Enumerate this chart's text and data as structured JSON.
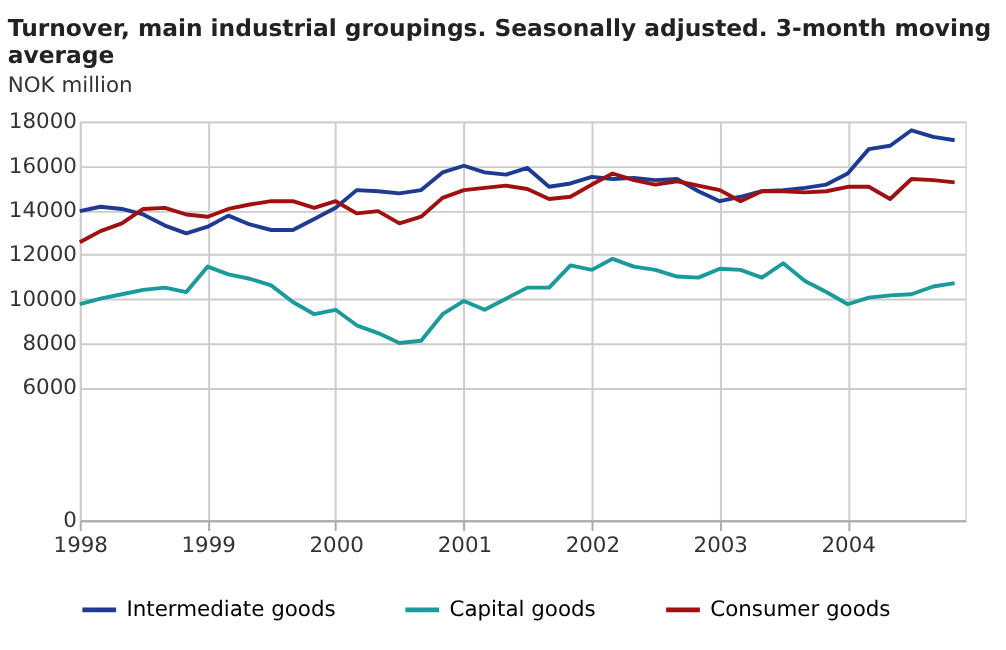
{
  "chart_data": {
    "type": "line",
    "title": [
      "Turnover, main industrial groupings. Seasonally adjusted. 3-month moving",
      "average"
    ],
    "ylabel": "NOK million",
    "x": [
      "1998-01",
      "1998-03",
      "1998-05",
      "1998-07",
      "1998-09",
      "1998-11",
      "1999-01",
      "1999-03",
      "1999-05",
      "1999-07",
      "1999-09",
      "1999-11",
      "2000-01",
      "2000-03",
      "2000-05",
      "2000-07",
      "2000-09",
      "2000-11",
      "2001-01",
      "2001-03",
      "2001-05",
      "2001-07",
      "2001-09",
      "2001-11",
      "2002-01",
      "2002-03",
      "2002-05",
      "2002-07",
      "2002-09",
      "2002-11",
      "2003-01",
      "2003-03",
      "2003-05",
      "2003-07",
      "2003-09",
      "2003-11",
      "2004-01",
      "2004-03",
      "2004-05",
      "2004-07",
      "2004-09",
      "2004-11"
    ],
    "series": [
      {
        "name": "Intermediate goods",
        "color": "#1f3a93",
        "values": [
          13950,
          14150,
          14050,
          13800,
          13300,
          12950,
          13250,
          13750,
          13350,
          13100,
          13100,
          13600,
          14100,
          14900,
          14850,
          14750,
          14900,
          15700,
          16000,
          15700,
          15600,
          15900,
          15050,
          15200,
          15500,
          15400,
          15450,
          15350,
          15400,
          14850,
          14400,
          14600,
          14850,
          14900,
          15000,
          15150,
          15650,
          16750,
          16900,
          17600,
          17300,
          17150
        ]
      },
      {
        "name": "Capital goods",
        "color": "#1a9a9a",
        "values": [
          9750,
          10000,
          10200,
          10400,
          10500,
          10300,
          11450,
          11100,
          10900,
          10600,
          9850,
          9300,
          9500,
          8800,
          8450,
          8000,
          8100,
          9300,
          9900,
          9500,
          10000,
          10500,
          10500,
          11500,
          11300,
          11800,
          11450,
          11300,
          11000,
          10950,
          11350,
          11300,
          10950,
          11600,
          10800,
          10300,
          9750,
          10050,
          10150,
          10200,
          10550,
          10700
        ]
      },
      {
        "name": "Consumer goods",
        "color": "#a01010",
        "values": [
          12550,
          13050,
          13400,
          14050,
          14100,
          13800,
          13700,
          14050,
          14250,
          14400,
          14400,
          14100,
          14400,
          13850,
          13950,
          13400,
          13700,
          14550,
          14900,
          15000,
          15100,
          14950,
          14500,
          14600,
          15150,
          15650,
          15350,
          15150,
          15300,
          15100,
          14900,
          14400,
          14850,
          14850,
          14800,
          14850,
          15050,
          15050,
          14500,
          15400,
          15350,
          15250
        ]
      }
    ],
    "xlim": [
      "1998-01-01",
      "2004-12-01"
    ],
    "xticks": [
      "1998",
      "1999",
      "2000",
      "2001",
      "2002",
      "2003",
      "2004"
    ],
    "ylim": [
      0,
      18000
    ],
    "yticks": [
      0,
      6000,
      8000,
      10000,
      12000,
      14000,
      16000,
      18000
    ],
    "grid": true,
    "legend": "bottom",
    "line_style": "solid",
    "marker": "none"
  }
}
